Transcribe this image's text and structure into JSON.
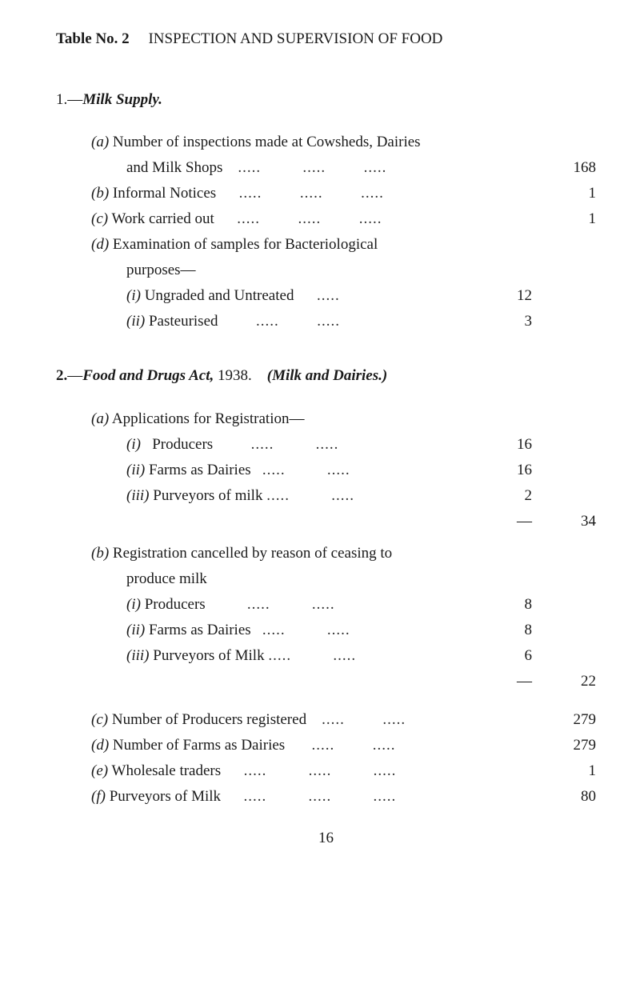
{
  "title": {
    "table_no": "Table No. 2",
    "heading": "INSPECTION AND SUPERVISION OF FOOD"
  },
  "sections": {
    "s1": {
      "num": "1.",
      "title": "Milk Supply.",
      "items": {
        "a": {
          "label": "(a)",
          "text1": "Number of inspections made at Cowsheds, Dairies",
          "text2": "and Milk Shops",
          "value": "168"
        },
        "b": {
          "label": "(b)",
          "text": "Informal Notices",
          "value": "1"
        },
        "c": {
          "label": "(c)",
          "text": "Work carried out",
          "value": "1"
        },
        "d": {
          "label": "(d)",
          "text1": "Examination of samples for Bacteriological",
          "text2": "purposes—",
          "sub": {
            "i": {
              "label": "(i)",
              "text": "Ungraded and Untreated",
              "value": "12"
            },
            "ii": {
              "label": "(ii)",
              "text": "Pasteurised",
              "value": "3"
            }
          }
        }
      }
    },
    "s2": {
      "num": "2.",
      "title_pre": "Food and Drugs Act,",
      "year": "1938.",
      "title_post": "(Milk and Dairies.)",
      "items": {
        "a": {
          "label": "(a)",
          "text": "Applications for Registration—",
          "sub": {
            "i": {
              "label": "(i)",
              "text": "Producers",
              "value": "16"
            },
            "ii": {
              "label": "(ii)",
              "text": "Farms as Dairies",
              "value": "16"
            },
            "iii": {
              "label": "(iii)",
              "text": "Purveyors of milk",
              "value": "2"
            }
          },
          "dash": "—",
          "total": "34"
        },
        "b": {
          "label": "(b)",
          "text1": "Registration cancelled by reason of ceasing to",
          "text2": "produce milk",
          "sub": {
            "i": {
              "label": "(i)",
              "text": "Producers",
              "value": "8"
            },
            "ii": {
              "label": "(ii)",
              "text": "Farms as Dairies",
              "value": "8"
            },
            "iii": {
              "label": "(iii)",
              "text": "Purveyors of Milk",
              "value": "6"
            }
          },
          "dash": "—",
          "total": "22"
        },
        "c": {
          "label": "(c)",
          "text": "Number of Producers registered",
          "value": "279"
        },
        "d": {
          "label": "(d)",
          "text": "Number of Farms as Dairies",
          "value": "279"
        },
        "e": {
          "label": "(e)",
          "text": "Wholesale traders",
          "value": "1"
        },
        "f": {
          "label": "(f)",
          "text": "Purveyors of Milk",
          "value": "80"
        }
      }
    }
  },
  "dots": ".....",
  "page_number": "16"
}
